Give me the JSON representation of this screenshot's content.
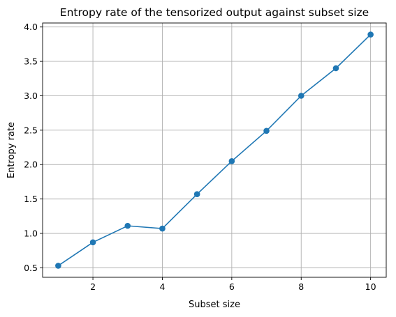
{
  "chart_data": {
    "type": "line",
    "title": "Entropy rate of the tensorized output against subset size",
    "xlabel": "Subset size",
    "ylabel": "Entropy rate",
    "x": [
      1,
      2,
      3,
      4,
      5,
      6,
      7,
      8,
      9,
      10
    ],
    "series": [
      {
        "values": [
          0.53,
          0.87,
          1.11,
          1.07,
          1.57,
          2.05,
          2.49,
          3.0,
          3.4,
          3.89
        ],
        "color": "#1f77b4",
        "marker": "circle"
      }
    ],
    "xlim": [
      0.55,
      10.45
    ],
    "ylim": [
      0.362,
      4.058
    ],
    "xticks": [
      2,
      4,
      6,
      8,
      10
    ],
    "xtick_labels": [
      "2",
      "4",
      "6",
      "8",
      "10"
    ],
    "yticks": [
      0.5,
      1.0,
      1.5,
      2.0,
      2.5,
      3.0,
      3.5,
      4.0
    ],
    "ytick_labels": [
      "0.5",
      "1.0",
      "1.5",
      "2.0",
      "2.5",
      "3.0",
      "3.5",
      "4.0"
    ],
    "grid": true,
    "grid_color": "#b0b0b0",
    "legend": "none"
  }
}
